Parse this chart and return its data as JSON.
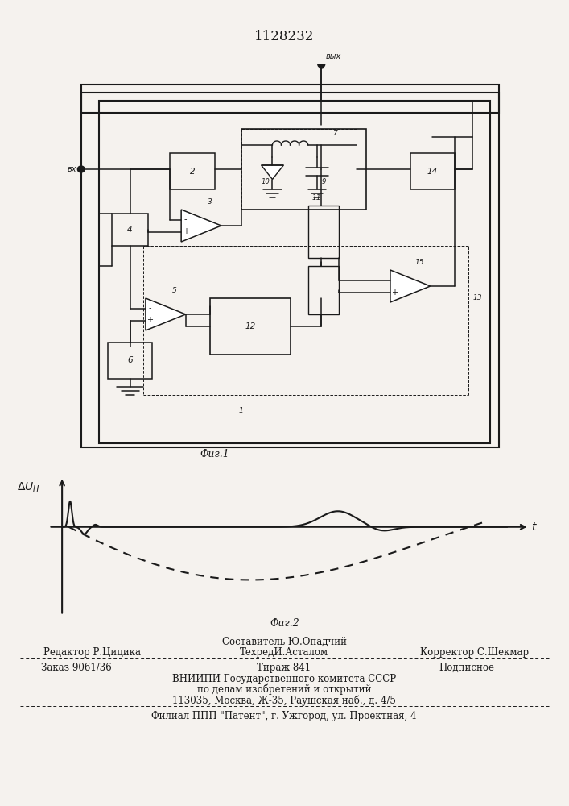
{
  "title": "1128232",
  "fig1_caption": "Фиг.1",
  "fig2_caption": "Фиг.2",
  "footer_line1": "Составитель Ю.Опадчий",
  "footer_line2_left": "Редактор Р.Цицика",
  "footer_line2_mid": "ТехредИ.Асталом",
  "footer_line2_right": "Корректор С.Шекмар",
  "footer_line3_left": "Заказ 9061/36",
  "footer_line3_mid": "Тираж 841",
  "footer_line3_right": "Подписное",
  "footer_line4": "ВНИИПИ Государственного комитета СССР",
  "footer_line5": "по делам изобретений и открытий",
  "footer_line6": "113035, Москва, Ж-35, Раушская наб., д. 4/5",
  "footer_line7": "Филиал ППП \"Патент\", г. Ужгород, ул. Проектная, 4",
  "bg_color": "#f5f2ee",
  "line_color": "#1a1a1a"
}
